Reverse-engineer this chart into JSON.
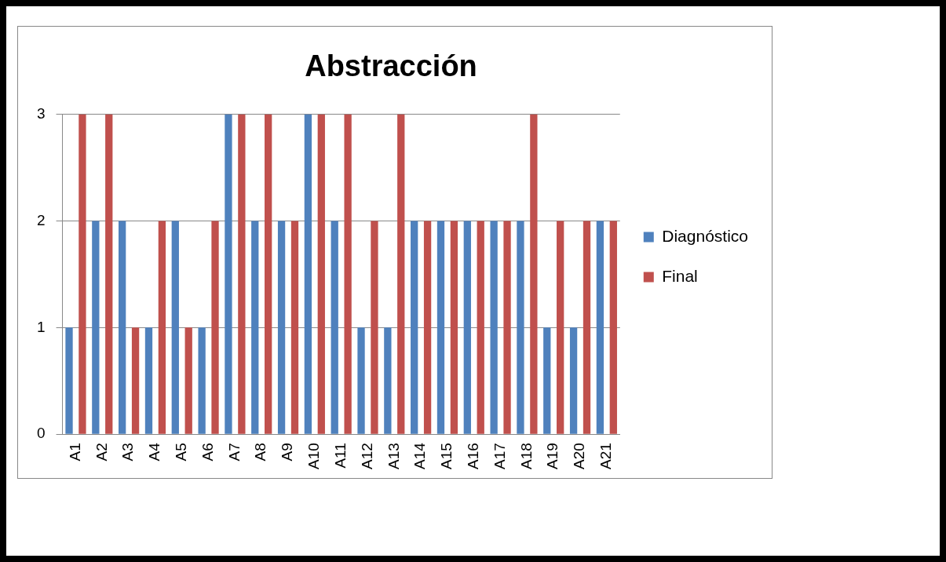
{
  "chart_data": {
    "type": "bar",
    "title": "Abstracción",
    "categories": [
      "A1",
      "A2",
      "A3",
      "A4",
      "A5",
      "A6",
      "A7",
      "A8",
      "A9",
      "A10",
      "A11",
      "A12",
      "A13",
      "A14",
      "A15",
      "A16",
      "A17",
      "A18",
      "A19",
      "A20",
      "A21"
    ],
    "series": [
      {
        "name": "Diagnóstico",
        "color": "#4f81bd",
        "values": [
          1,
          2,
          2,
          1,
          2,
          1,
          3,
          2,
          2,
          3,
          2,
          1,
          1,
          2,
          2,
          2,
          2,
          2,
          1,
          1,
          2
        ]
      },
      {
        "name": "Final",
        "color": "#c0504d",
        "values": [
          3,
          3,
          1,
          2,
          1,
          2,
          3,
          3,
          2,
          3,
          3,
          2,
          3,
          2,
          2,
          2,
          2,
          3,
          2,
          2,
          2
        ]
      }
    ],
    "ylim": [
      0,
      3
    ],
    "yticks": [
      0,
      1,
      2,
      3
    ],
    "grid": "y",
    "legend": "right"
  }
}
